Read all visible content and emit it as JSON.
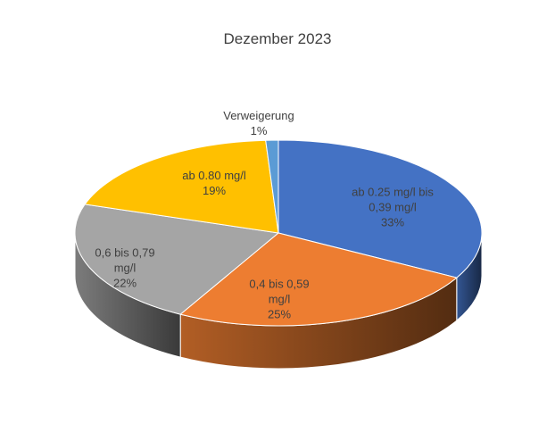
{
  "chart_data": {
    "type": "pie3d",
    "title": "Dezember 2023",
    "categories": [
      "ab 0.25 mg/l bis 0,39 mg/l",
      "0,4 bis 0,59 mg/l",
      "0,6 bis 0,79 mg/l",
      "ab 0.80 mg/l",
      "Verweigerung"
    ],
    "values": [
      33,
      25,
      22,
      19,
      1
    ],
    "value_labels": [
      "33%",
      "25%",
      "22%",
      "19%",
      "1%"
    ],
    "colors": [
      "#4472c4",
      "#ed7d31",
      "#a5a5a5",
      "#ffc000",
      "#5b9bd5"
    ]
  }
}
